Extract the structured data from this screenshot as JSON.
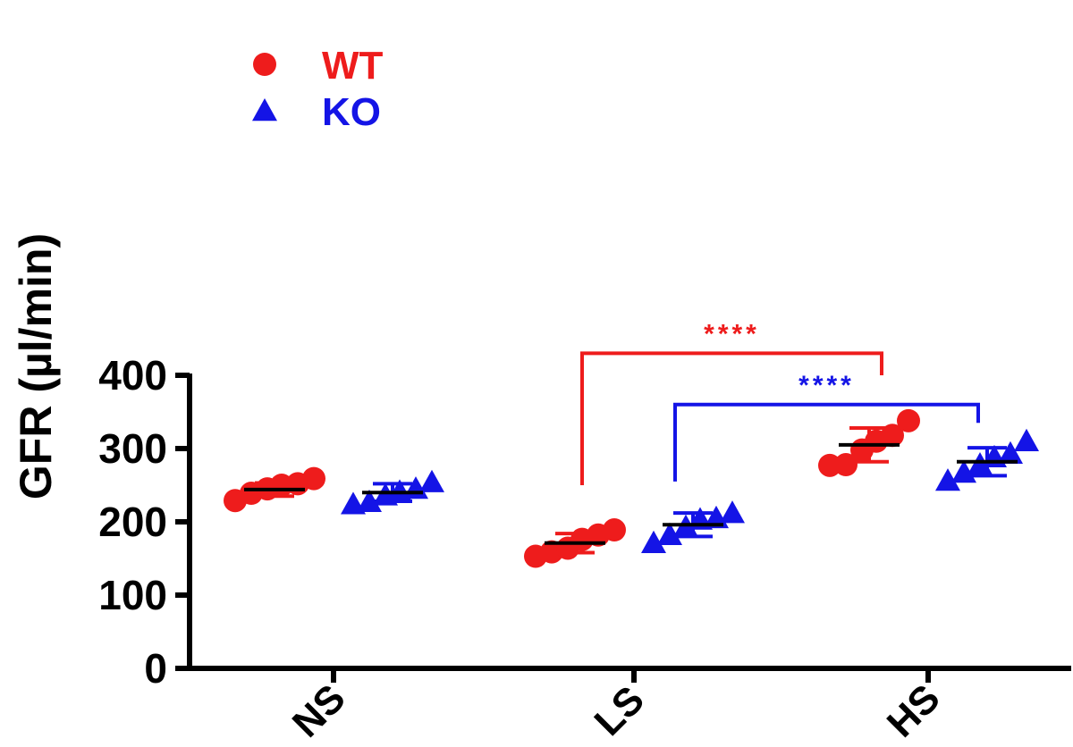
{
  "chart_data": {
    "type": "scatter",
    "subtype": "dot-plot-with-mean-and-sd",
    "ylabel": "GFR (µl/min)",
    "xlabel": "",
    "ylim": [
      0,
      400
    ],
    "yticks": [
      0,
      100,
      200,
      300,
      400
    ],
    "categories": [
      "NS",
      "LS",
      "HS"
    ],
    "legend": {
      "placement": "top-left"
    },
    "series": [
      {
        "name": "WT",
        "color": "#ee1c1c",
        "marker": "circle",
        "groups": [
          {
            "category": "NS",
            "mean": 244,
            "sd": 9,
            "points": [
              229,
              239,
              245,
              250,
              252,
              259
            ]
          },
          {
            "category": "LS",
            "mean": 171,
            "sd": 13,
            "points": [
              153,
              159,
              164,
              176,
              182,
              189
            ]
          },
          {
            "category": "HS",
            "mean": 305,
            "sd": 23,
            "points": [
              277,
              278,
              298,
              310,
              318,
              338
            ]
          }
        ]
      },
      {
        "name": "KO",
        "color": "#1414e6",
        "marker": "triangle",
        "groups": [
          {
            "category": "NS",
            "mean": 240,
            "sd": 12,
            "points": [
              224,
              227,
              236,
              241,
              245,
              254
            ]
          },
          {
            "category": "LS",
            "mean": 196,
            "sd": 16,
            "points": [
              171,
              182,
              193,
              203,
              205,
              212
            ]
          },
          {
            "category": "HS",
            "mean": 282,
            "sd": 19,
            "points": [
              256,
              267,
              278,
              288,
              293,
              310
            ]
          }
        ]
      }
    ],
    "significance": [
      {
        "label": "****",
        "color": "#ee1c1c",
        "series": "WT",
        "from": "LS",
        "to": "HS",
        "y_left": 250,
        "y_right": 400,
        "y_top": 430
      },
      {
        "label": "****",
        "color": "#1414e6",
        "series": "KO",
        "from": "LS",
        "to": "HS",
        "y_left": 255,
        "y_right": 335,
        "y_top": 360
      }
    ]
  }
}
